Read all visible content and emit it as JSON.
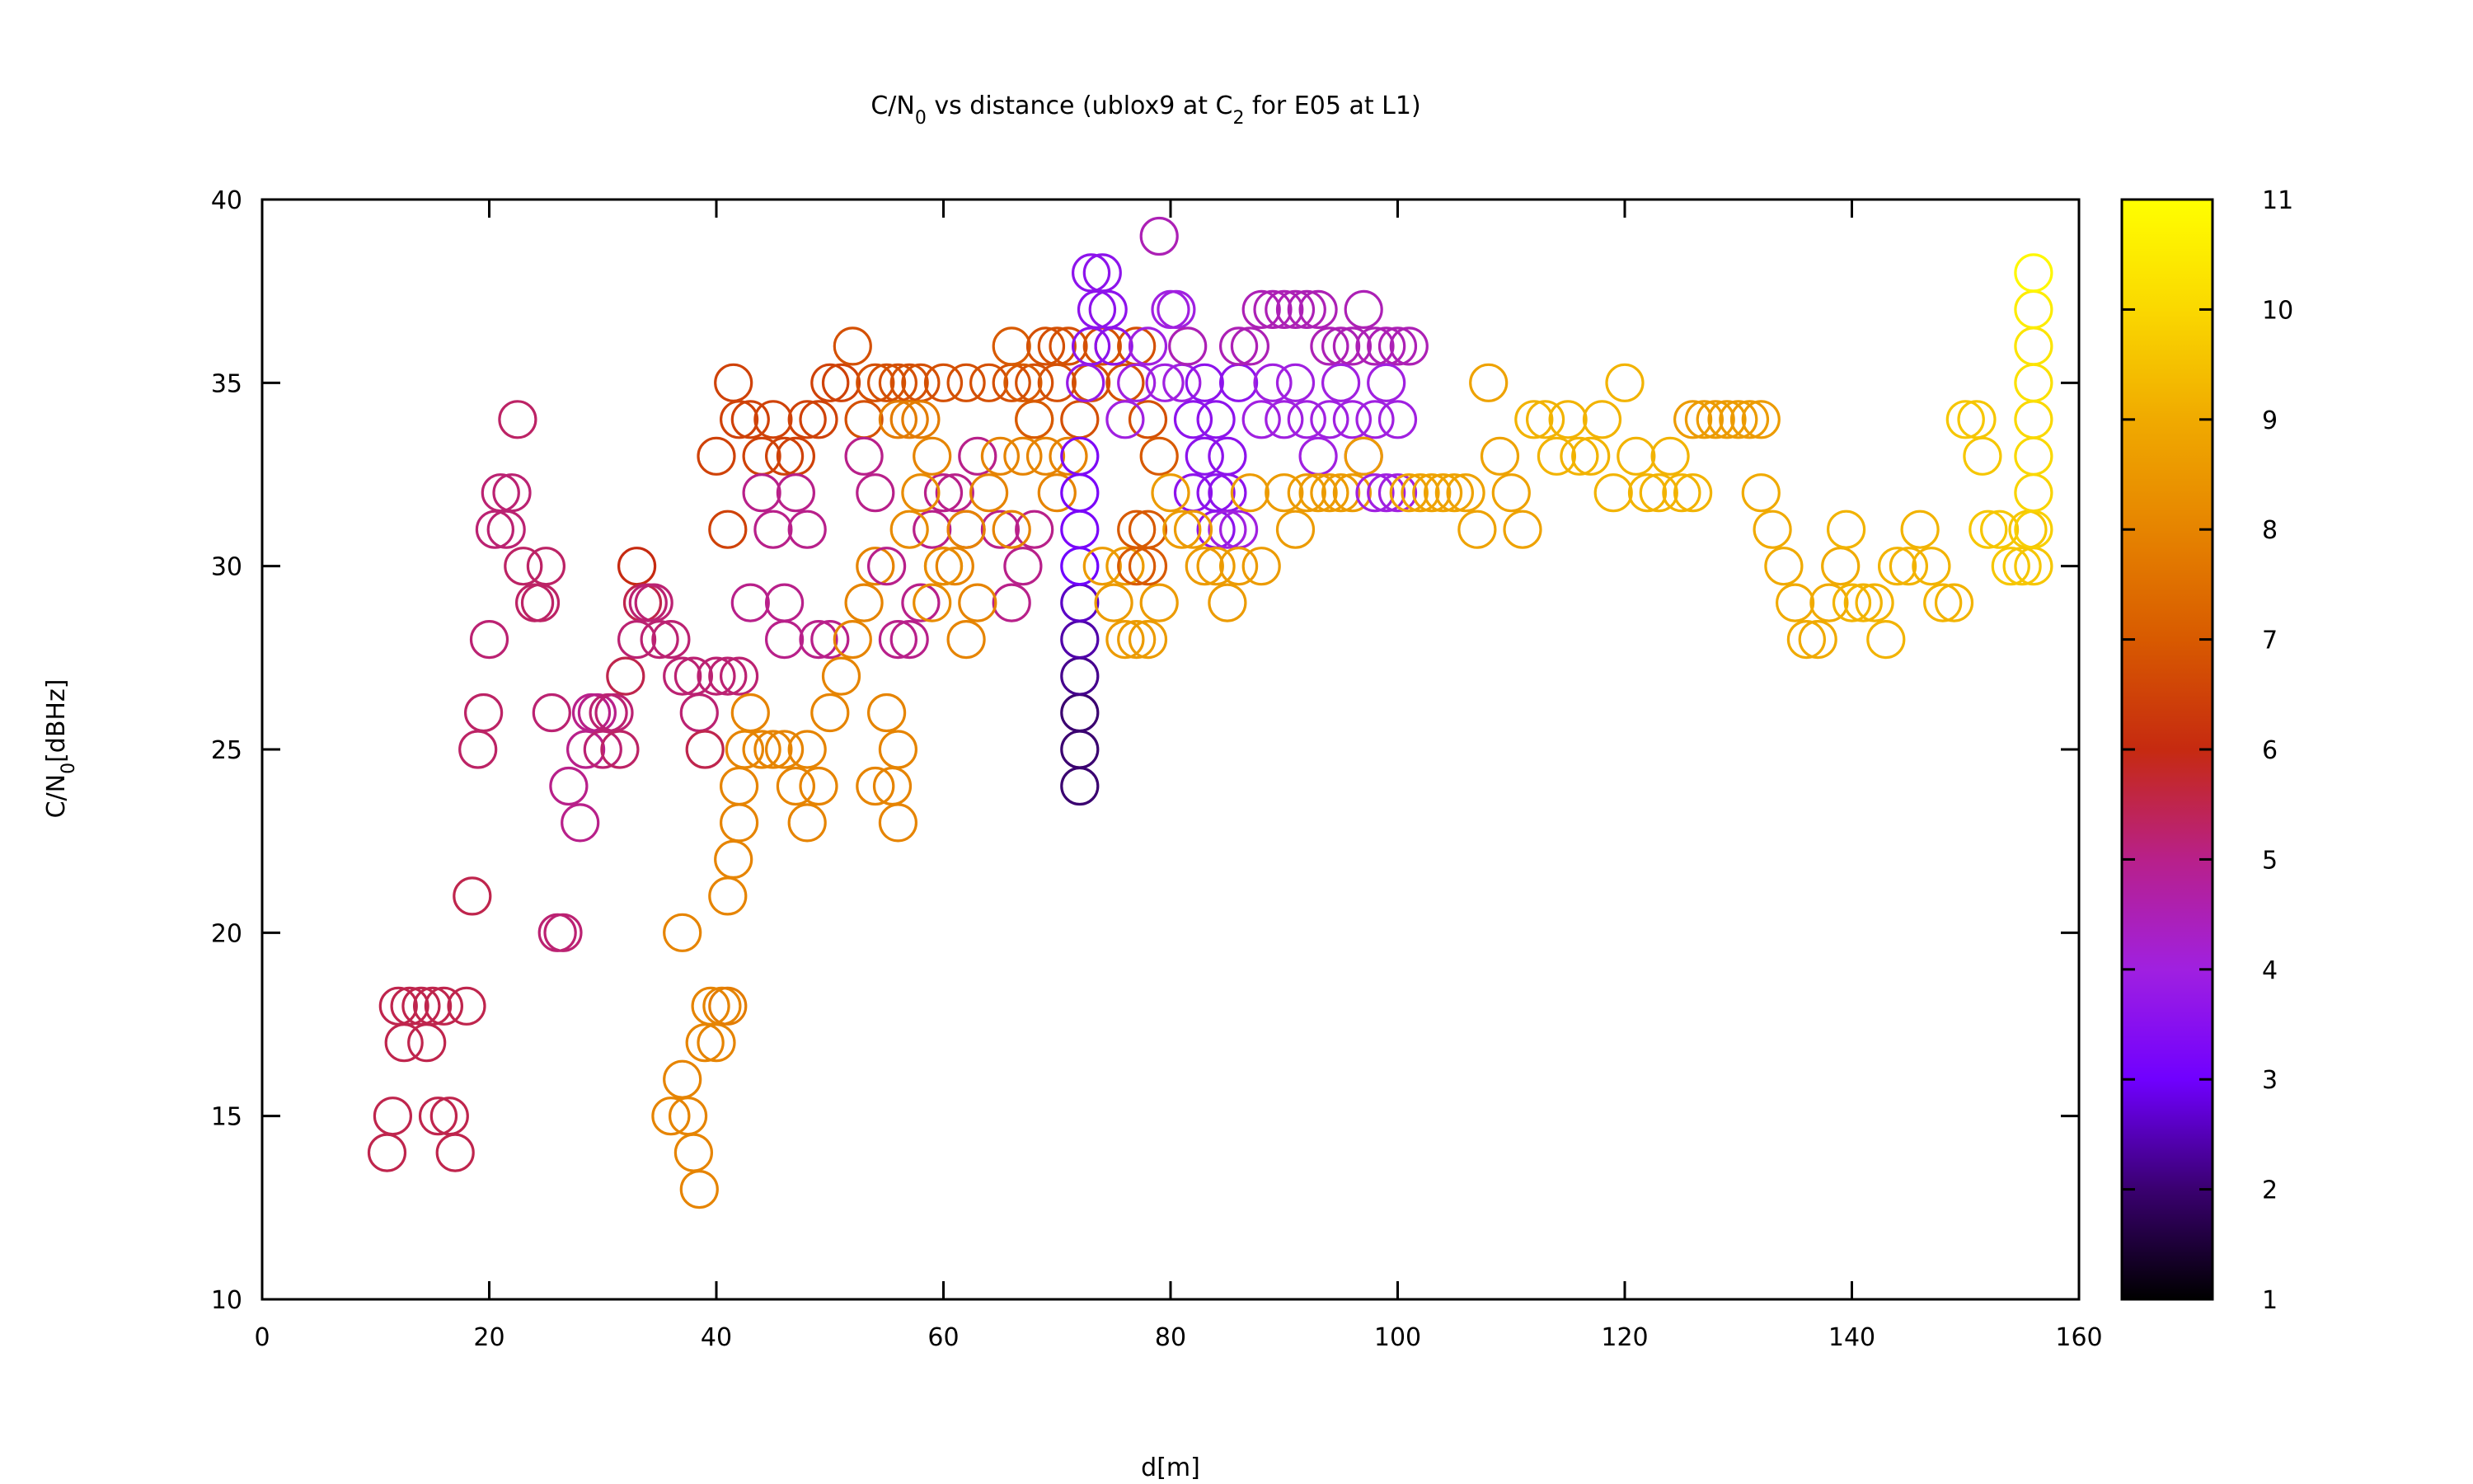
{
  "chart_data": {
    "type": "scatter",
    "title": {
      "base": "C/N",
      "sub": "0",
      "rest1": " vs distance (ublox9 at C",
      "sub2": "2",
      "rest2": " for E05 at L1)"
    },
    "xlabel": "d[m]",
    "ylabel": {
      "base": "C/N",
      "sub": "0",
      "rest": "[dBHz]"
    },
    "xlim": [
      0,
      160
    ],
    "ylim": [
      10,
      40
    ],
    "xticks": [
      "0",
      "20",
      "40",
      "60",
      "80",
      "100",
      "120",
      "140",
      "160"
    ],
    "yticks": [
      "10",
      "15",
      "20",
      "25",
      "30",
      "35",
      "40"
    ],
    "colorbar": {
      "range": [
        1,
        11
      ],
      "ticks": [
        "1",
        "2",
        "3",
        "4",
        "5",
        "6",
        "7",
        "8",
        "9",
        "10",
        "11"
      ],
      "palette": [
        "#000000",
        "#3a0070",
        "#7000ff",
        "#a020e0",
        "#b8208a",
        "#c62a10",
        "#d85a00",
        "#e68400",
        "#f0aa00",
        "#fad800",
        "#ffff00"
      ]
    },
    "grid": false,
    "legend": "none",
    "points": [
      [
        11,
        14,
        5.5
      ],
      [
        11.5,
        15,
        5.5
      ],
      [
        12,
        18,
        5.5
      ],
      [
        12.5,
        17,
        5.5
      ],
      [
        13,
        18,
        5.5
      ],
      [
        14,
        18,
        5.5
      ],
      [
        14.5,
        17,
        5.5
      ],
      [
        15,
        18,
        5.5
      ],
      [
        15.5,
        15,
        5.5
      ],
      [
        16,
        18,
        5.5
      ],
      [
        16.5,
        15,
        5.5
      ],
      [
        17,
        14,
        5.5
      ],
      [
        18,
        18,
        5.5
      ],
      [
        18.5,
        21,
        5.5
      ],
      [
        19,
        25,
        5.3
      ],
      [
        19.5,
        26,
        5.3
      ],
      [
        20,
        28,
        5.2
      ],
      [
        20.5,
        31,
        5.2
      ],
      [
        21,
        32,
        5.2
      ],
      [
        21.5,
        31,
        5.2
      ],
      [
        22,
        32,
        5.2
      ],
      [
        22.5,
        34,
        5.3
      ],
      [
        23,
        30,
        5.3
      ],
      [
        24,
        29,
        5.3
      ],
      [
        24.5,
        29,
        5.3
      ],
      [
        25,
        30,
        5.3
      ],
      [
        25.5,
        26,
        5.2
      ],
      [
        26,
        20,
        5.2
      ],
      [
        26.5,
        20,
        5.2
      ],
      [
        27,
        24,
        5
      ],
      [
        28,
        23,
        5
      ],
      [
        28.5,
        25,
        5
      ],
      [
        29,
        26,
        5
      ],
      [
        29.5,
        26,
        5
      ],
      [
        30,
        25,
        5.2
      ],
      [
        30.5,
        26,
        5.2
      ],
      [
        31,
        26,
        5.2
      ],
      [
        31.5,
        25,
        5.3
      ],
      [
        32,
        27,
        5.5
      ],
      [
        33,
        30,
        6
      ],
      [
        33.5,
        29,
        5.5
      ],
      [
        33,
        28,
        5.2
      ],
      [
        34,
        29,
        5.2
      ],
      [
        34.5,
        29,
        5.2
      ],
      [
        35,
        28,
        5.2
      ],
      [
        36,
        28,
        5.2
      ],
      [
        37,
        27,
        5.2
      ],
      [
        38,
        27,
        5.2
      ],
      [
        38.5,
        26,
        5.2
      ],
      [
        39,
        25,
        5.5
      ],
      [
        36,
        15,
        8
      ],
      [
        37,
        16,
        8
      ],
      [
        37.5,
        15,
        8
      ],
      [
        38,
        14,
        8
      ],
      [
        38.5,
        13,
        8
      ],
      [
        39,
        17,
        8
      ],
      [
        37,
        20,
        8
      ],
      [
        40,
        17,
        8
      ],
      [
        40.5,
        18,
        8
      ],
      [
        41,
        18,
        7.8
      ],
      [
        39.5,
        18,
        8
      ],
      [
        40,
        27,
        5.2
      ],
      [
        41,
        27,
        5.2
      ],
      [
        42,
        27,
        5.2
      ],
      [
        42,
        23,
        8
      ],
      [
        42,
        24,
        8
      ],
      [
        41.5,
        22,
        8
      ],
      [
        41,
        21,
        8
      ],
      [
        42.5,
        25,
        8
      ],
      [
        43,
        26,
        8
      ],
      [
        44,
        25,
        8
      ],
      [
        45,
        25,
        8
      ],
      [
        40,
        33,
        6.5
      ],
      [
        41,
        31,
        6.5
      ],
      [
        41.5,
        35,
        6.5
      ],
      [
        42,
        34,
        6.5
      ],
      [
        43,
        34,
        6.5
      ],
      [
        44,
        33,
        6.5
      ],
      [
        45,
        34,
        6.5
      ],
      [
        46,
        33,
        6.5
      ],
      [
        47,
        33,
        6.5
      ],
      [
        48,
        34,
        6.5
      ],
      [
        49,
        34,
        6.5
      ],
      [
        50,
        35,
        6.5
      ],
      [
        51,
        35,
        6.5
      ],
      [
        52,
        36,
        6.8
      ],
      [
        43,
        29,
        5
      ],
      [
        44,
        32,
        5
      ],
      [
        45,
        31,
        5
      ],
      [
        46,
        29,
        5
      ],
      [
        47,
        32,
        5
      ],
      [
        48,
        31,
        5
      ],
      [
        49,
        28,
        5
      ],
      [
        50,
        28,
        5
      ],
      [
        46,
        28,
        5
      ],
      [
        46,
        25,
        8
      ],
      [
        47,
        24,
        8
      ],
      [
        48,
        23,
        8
      ],
      [
        48,
        25,
        8
      ],
      [
        49,
        24,
        8
      ],
      [
        50,
        26,
        8
      ],
      [
        51,
        27,
        8
      ],
      [
        52,
        28,
        8
      ],
      [
        53,
        29,
        8
      ],
      [
        54,
        30,
        8
      ],
      [
        55,
        26,
        8
      ],
      [
        56,
        25,
        8
      ],
      [
        55.5,
        24,
        8
      ],
      [
        56,
        23,
        8
      ],
      [
        54,
        24,
        8
      ],
      [
        53,
        34,
        6.8
      ],
      [
        54,
        35,
        6.8
      ],
      [
        55,
        35,
        6.8
      ],
      [
        56,
        35,
        6.8
      ],
      [
        57,
        35,
        6.8
      ],
      [
        58,
        35,
        6.8
      ],
      [
        60,
        35,
        6.8
      ],
      [
        62,
        35,
        6.8
      ],
      [
        64,
        35,
        6.8
      ],
      [
        66,
        35,
        6.8
      ],
      [
        68,
        35,
        6.8
      ],
      [
        70,
        35,
        6.8
      ],
      [
        53,
        33,
        5
      ],
      [
        54,
        32,
        5
      ],
      [
        55,
        30,
        5
      ],
      [
        56,
        28,
        5
      ],
      [
        57,
        28,
        5
      ],
      [
        58,
        29,
        5
      ],
      [
        59,
        31,
        5
      ],
      [
        60,
        32,
        5
      ],
      [
        61,
        32,
        5
      ],
      [
        62,
        31,
        5
      ],
      [
        63,
        33,
        5
      ],
      [
        65,
        31,
        5
      ],
      [
        66,
        29,
        5
      ],
      [
        67,
        30,
        5
      ],
      [
        68,
        31,
        5
      ],
      [
        56,
        34,
        7.8
      ],
      [
        57,
        34,
        7.8
      ],
      [
        58,
        34,
        7.8
      ],
      [
        59,
        33,
        8
      ],
      [
        60,
        30,
        8
      ],
      [
        61,
        30,
        8
      ],
      [
        62,
        31,
        8
      ],
      [
        62,
        28,
        8
      ],
      [
        63,
        29,
        8
      ],
      [
        64,
        32,
        8
      ],
      [
        65,
        33,
        8
      ],
      [
        66,
        31,
        8
      ],
      [
        67,
        33,
        8
      ],
      [
        68,
        34,
        8
      ],
      [
        69,
        33,
        8
      ],
      [
        70,
        32,
        8
      ],
      [
        71,
        33,
        8
      ],
      [
        57,
        31,
        8.2
      ],
      [
        58,
        32,
        8.2
      ],
      [
        59,
        29,
        8.2
      ],
      [
        60,
        30,
        8.2
      ],
      [
        66,
        36,
        7
      ],
      [
        67,
        35,
        7
      ],
      [
        68,
        34,
        7
      ],
      [
        69,
        36,
        6.8
      ],
      [
        70,
        36,
        6.8
      ],
      [
        71,
        36,
        6.8
      ],
      [
        72,
        34,
        6.8
      ],
      [
        73,
        35,
        6.8
      ],
      [
        74,
        36,
        6.8
      ],
      [
        75,
        36,
        6.8
      ],
      [
        76,
        35,
        6.8
      ],
      [
        77,
        36,
        6.8
      ],
      [
        78,
        34,
        6.8
      ],
      [
        72,
        24,
        2
      ],
      [
        72,
        25,
        2
      ],
      [
        72,
        26,
        2
      ],
      [
        72,
        27,
        2.2
      ],
      [
        72,
        28,
        2.4
      ],
      [
        72,
        29,
        2.6
      ],
      [
        72,
        30,
        3
      ],
      [
        72,
        31,
        3.2
      ],
      [
        72,
        32,
        3.2
      ],
      [
        72,
        33,
        3.3
      ],
      [
        73,
        38,
        3.6
      ],
      [
        73.5,
        37,
        3.6
      ],
      [
        74,
        38,
        3.6
      ],
      [
        74.5,
        37,
        3.6
      ],
      [
        75,
        36,
        3.6
      ],
      [
        73,
        36,
        3.6
      ],
      [
        72.5,
        35,
        3.8
      ],
      [
        74,
        30,
        8.6
      ],
      [
        75,
        29,
        8.6
      ],
      [
        76,
        28,
        8.6
      ],
      [
        77,
        28,
        8.6
      ],
      [
        78,
        28,
        8.6
      ],
      [
        79,
        29,
        8.6
      ],
      [
        76,
        30,
        8.6
      ],
      [
        77,
        30,
        7
      ],
      [
        78,
        31,
        7
      ],
      [
        78,
        30,
        7
      ],
      [
        79,
        33,
        7
      ],
      [
        77,
        31,
        7
      ],
      [
        76,
        34,
        4
      ],
      [
        77,
        35,
        4
      ],
      [
        78,
        36,
        4
      ],
      [
        79,
        39,
        4.5
      ],
      [
        80,
        37,
        4
      ],
      [
        79.5,
        35,
        4
      ],
      [
        80.5,
        37,
        4
      ],
      [
        81,
        35,
        4
      ],
      [
        81.5,
        36,
        4.5
      ],
      [
        82,
        34,
        3.6
      ],
      [
        83,
        35,
        3.6
      ],
      [
        84,
        34,
        3.6
      ],
      [
        85,
        33,
        3.6
      ],
      [
        84,
        31,
        3.6
      ],
      [
        85,
        32,
        3.6
      ],
      [
        86,
        35,
        3.6
      ],
      [
        82,
        32,
        3.6
      ],
      [
        83,
        33,
        3.6
      ],
      [
        84,
        32,
        3.6
      ],
      [
        85,
        31,
        4
      ],
      [
        86,
        31,
        4
      ],
      [
        86,
        30,
        8.6
      ],
      [
        87,
        32,
        8.6
      ],
      [
        88,
        30,
        8.6
      ],
      [
        80,
        32,
        8.6
      ],
      [
        81,
        31,
        8.6
      ],
      [
        82,
        31,
        8.6
      ],
      [
        83,
        30,
        8.6
      ],
      [
        84,
        30,
        8.6
      ],
      [
        85,
        29,
        8.6
      ],
      [
        86,
        36,
        4.5
      ],
      [
        87,
        36,
        4.5
      ],
      [
        88,
        37,
        4.5
      ],
      [
        89,
        37,
        4.5
      ],
      [
        90,
        37,
        4.5
      ],
      [
        91,
        37,
        4.5
      ],
      [
        92,
        37,
        4.5
      ],
      [
        93,
        37,
        4.5
      ],
      [
        94,
        36,
        4.5
      ],
      [
        95,
        36,
        4.5
      ],
      [
        96,
        36,
        4.5
      ],
      [
        97,
        37,
        4.5
      ],
      [
        98,
        36,
        4.5
      ],
      [
        99,
        36,
        4.5
      ],
      [
        100,
        36,
        4.5
      ],
      [
        101,
        36,
        4.5
      ],
      [
        88,
        34,
        4
      ],
      [
        89,
        35,
        4
      ],
      [
        90,
        34,
        4
      ],
      [
        91,
        35,
        4
      ],
      [
        92,
        34,
        4
      ],
      [
        93,
        33,
        4
      ],
      [
        94,
        34,
        4
      ],
      [
        95,
        35,
        4
      ],
      [
        96,
        34,
        4
      ],
      [
        97,
        33,
        4
      ],
      [
        98,
        34,
        4
      ],
      [
        99,
        35,
        4
      ],
      [
        100,
        34,
        4
      ],
      [
        90,
        32,
        8.6
      ],
      [
        91,
        31,
        8.6
      ],
      [
        92,
        32,
        8.6
      ],
      [
        93,
        32,
        8.6
      ],
      [
        94,
        32,
        8.6
      ],
      [
        95,
        32,
        8.6
      ],
      [
        96,
        32,
        8.6
      ],
      [
        97,
        33,
        8.6
      ],
      [
        98,
        32,
        4
      ],
      [
        99,
        32,
        4
      ],
      [
        100,
        32,
        4
      ],
      [
        101,
        32,
        8.8
      ],
      [
        102,
        32,
        8.8
      ],
      [
        103,
        32,
        8.8
      ],
      [
        104,
        32,
        8.8
      ],
      [
        105,
        32,
        8.8
      ],
      [
        106,
        32,
        8.8
      ],
      [
        107,
        31,
        8.8
      ],
      [
        108,
        35,
        8.8
      ],
      [
        109,
        33,
        8.8
      ],
      [
        110,
        32,
        8.8
      ],
      [
        111,
        31,
        8.8
      ],
      [
        112,
        34,
        9.2
      ],
      [
        113,
        34,
        9.2
      ],
      [
        114,
        33,
        9.2
      ],
      [
        115,
        34,
        9.2
      ],
      [
        116,
        33,
        9.2
      ],
      [
        117,
        33,
        9.2
      ],
      [
        118,
        34,
        9.2
      ],
      [
        119,
        32,
        9.2
      ],
      [
        120,
        35,
        9.2
      ],
      [
        121,
        33,
        9.2
      ],
      [
        122,
        32,
        9.2
      ],
      [
        123,
        32,
        9.2
      ],
      [
        124,
        33,
        9.2
      ],
      [
        125,
        32,
        9.2
      ],
      [
        126,
        32,
        9.2
      ],
      [
        126,
        34,
        8.6
      ],
      [
        127,
        34,
        8.6
      ],
      [
        128,
        34,
        8.6
      ],
      [
        129,
        34,
        8.6
      ],
      [
        130,
        34,
        8.6
      ],
      [
        131,
        34,
        8.6
      ],
      [
        132,
        34,
        8.6
      ],
      [
        132,
        32,
        9
      ],
      [
        133,
        31,
        9
      ],
      [
        134,
        30,
        9
      ],
      [
        135,
        29,
        9
      ],
      [
        136,
        28,
        9
      ],
      [
        137,
        28,
        9
      ],
      [
        138,
        29,
        9
      ],
      [
        139,
        30,
        9
      ],
      [
        139.5,
        31,
        9.2
      ],
      [
        140,
        29,
        9.2
      ],
      [
        141,
        29,
        9.2
      ],
      [
        142,
        29,
        9.2
      ],
      [
        143,
        28,
        9.2
      ],
      [
        144,
        30,
        9.2
      ],
      [
        145,
        30,
        9.2
      ],
      [
        146,
        31,
        9.2
      ],
      [
        147,
        30,
        9.2
      ],
      [
        148,
        29,
        9.2
      ],
      [
        149,
        29,
        9.2
      ],
      [
        150,
        34,
        9.6
      ],
      [
        151,
        34,
        9.6
      ],
      [
        151.5,
        33,
        9.6
      ],
      [
        152,
        31,
        9.6
      ],
      [
        153,
        31,
        9.6
      ],
      [
        154,
        30,
        9.6
      ],
      [
        155,
        30,
        9.6
      ],
      [
        155.5,
        31,
        9.6
      ],
      [
        156,
        30,
        9.6
      ],
      [
        156,
        31,
        9.8
      ],
      [
        156,
        32,
        9.9
      ],
      [
        156,
        33,
        10
      ],
      [
        156,
        34,
        10
      ],
      [
        156,
        35,
        10.2
      ],
      [
        156,
        36,
        10.3
      ],
      [
        156,
        37,
        10.5
      ],
      [
        156,
        38,
        10.8
      ]
    ]
  }
}
